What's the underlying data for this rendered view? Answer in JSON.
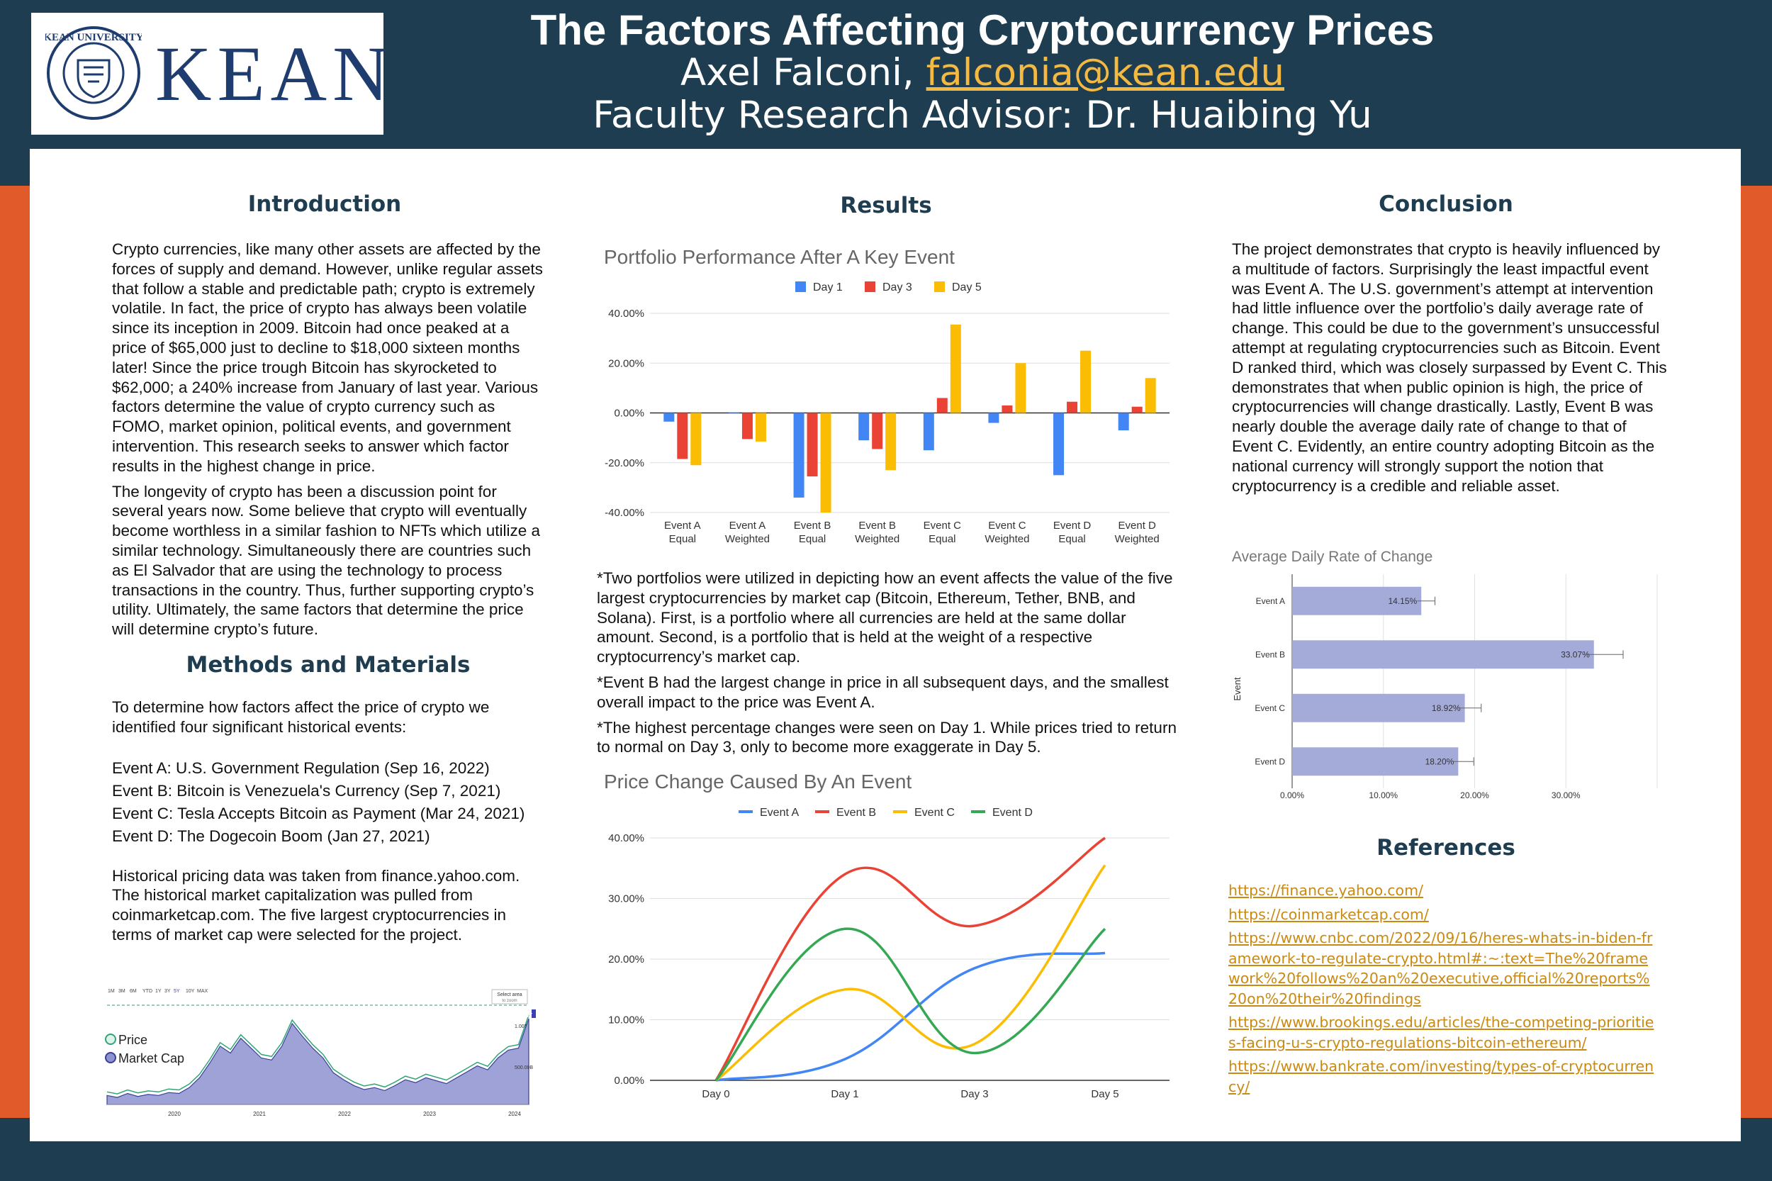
{
  "header": {
    "title": "The Factors Affecting Cryptocurrency Prices",
    "author": "Axel Falconi,",
    "email": "falconia@kean.edu",
    "advisor": "Faculty Research Advisor: Dr. Huaibing Yu",
    "logo_text": "KEAN",
    "seal_text": "KEAN UNIVERSITY"
  },
  "introduction": {
    "heading": "Introduction",
    "p1": "Crypto currencies, like many other assets are affected by the forces of supply and demand. However, unlike regular assets that follow a stable and predictable path; crypto is extremely volatile. In fact, the price of crypto has always been volatile since its inception in 2009. Bitcoin had once peaked at a price of $65,000 just to decline to $18,000 sixteen months later! Since the price trough Bitcoin has skyrocketed to $62,000; a 240% increase from January of last year. Various factors determine the value of crypto currency such as FOMO, market opinion, political events, and government intervention. This research seeks to answer which factor results in the highest change in price.",
    "p2": "The longevity of crypto has been a discussion point for several years now. Some believe that crypto will eventually become worthless in a similar fashion to NFTs which utilize a similar technology. Simultaneously there are countries such as El Salvador that are using the technology to process transactions in the country. Thus, further supporting crypto’s utility. Ultimately, the same factors that determine the price will determine crypto’s future."
  },
  "methods": {
    "heading": "Methods and Materials",
    "p1": "To determine how factors affect the price of crypto we identified four significant historical events:",
    "events": [
      "Event A: U.S. Government Regulation (Sep 16, 2022)",
      "Event B: Bitcoin is Venezuela's Currency (Sep 7, 2021)",
      "Event C: Tesla Accepts Bitcoin as Payment (Mar 24, 2021)",
      "Event D: The Dogecoin Boom (Jan 27, 2021)"
    ],
    "p2": "Historical pricing data was taken from finance.yahoo.com. The historical market capitalization was pulled from coinmarketcap.com. The five largest cryptocurrencies in terms of market cap were selected for the project."
  },
  "market_chart": {
    "ranges": [
      "1M",
      "3M",
      "6M",
      "YTD",
      "1Y",
      "3Y",
      "5Y",
      "10Y",
      "MAX"
    ],
    "select": "Select area",
    "select_sub": "to zoom",
    "legend": [
      "Price",
      "Market Cap"
    ],
    "years": [
      "2020",
      "2021",
      "2022",
      "2023",
      "2024"
    ],
    "right_labels": [
      "1.225T",
      "1.00T",
      "500.00B"
    ]
  },
  "results": {
    "heading": "Results",
    "n1": "*Two portfolios were utilized in depicting how an event affects the value of the five largest cryptocurrencies by market cap (Bitcoin, Ethereum, Tether, BNB, and Solana). First, is a portfolio where all currencies are held at the same dollar amount. Second, is a portfolio that is held at the weight of a respective cryptocurrency’s market cap.",
    "n2": "*Event B had the largest change in price in all subsequent days, and the smallest overall impact to the price was Event A.",
    "n3": "*The highest percentage changes were seen on Day 1. While prices tried to return to normal on Day 3, only to become more exaggerate in Day 5."
  },
  "conclusion": {
    "heading": "Conclusion",
    "text": "The project demonstrates that crypto is heavily influenced by a multitude of factors. Surprisingly the least impactful event was Event A. The U.S. government’s attempt at intervention had little influence over the portfolio’s daily average rate of change. This could be due to the government’s unsuccessful attempt at regulating cryptocurrencies such as Bitcoin. Event D ranked third, which was closely surpassed by Event C. This demonstrates that when public opinion is high, the price of cryptocurrencies will change drastically. Lastly, Event B was nearly double the average daily rate of change to that of Event C. Evidently, an entire country adopting Bitcoin as the national currency will strongly support the notion that cryptocurrency is a credible and reliable asset."
  },
  "references": {
    "heading": "References",
    "links": [
      "https://finance.yahoo.com/",
      "https://coinmarketcap.com/",
      "https://www.cnbc.com/2022/09/16/heres-whats-in-biden-framework-to-regulate-crypto.html#:~:text=The%20framework%20follows%20an%20executive,official%20reports%20on%20their%20findings",
      "https://www.brookings.edu/articles/the-competing-priorities-facing-u-s-crypto-regulations-bitcoin-ethereum/",
      "https://www.bankrate.com/investing/types-of-cryptocurrency/"
    ]
  },
  "colors": {
    "navy": "#1e3d50",
    "orange": "#e05a2a",
    "blue": "#4285f4",
    "red": "#ea4335",
    "yellow": "#fbbc04",
    "green": "#34a853",
    "lavender": "#a5abd9"
  },
  "chart_data": [
    {
      "type": "bar",
      "title": "Portfolio Performance After A Key Event",
      "categories": [
        "Event A Equal",
        "Event A Weighted",
        "Event B Equal",
        "Event B Weighted",
        "Event C Equal",
        "Event C Weighted",
        "Event D Equal",
        "Event D Weighted"
      ],
      "series": [
        {
          "name": "Day 1",
          "color": "#4285f4",
          "values": [
            -3.5,
            0,
            -34,
            -11,
            -15,
            -4,
            -25,
            -7
          ]
        },
        {
          "name": "Day 3",
          "color": "#ea4335",
          "values": [
            -18.5,
            -10.5,
            -25.5,
            -14.5,
            6,
            3,
            4.5,
            2.5
          ]
        },
        {
          "name": "Day 5",
          "color": "#fbbc04",
          "values": [
            -21,
            -11.5,
            -40,
            -23,
            35.5,
            20,
            25,
            14
          ]
        }
      ],
      "yticks": [
        "40.00%",
        "20.00%",
        "0.00%",
        "-20.00%",
        "-40.00%"
      ],
      "ylim": [
        -40,
        40
      ]
    },
    {
      "type": "line",
      "title": "Price Change Caused By An Event",
      "categories": [
        "Day 0",
        "Day 1",
        "Day 3",
        "Day 5"
      ],
      "series": [
        {
          "name": "Event A",
          "color": "#4285f4",
          "values": [
            0,
            3.5,
            18.5,
            21
          ]
        },
        {
          "name": "Event B",
          "color": "#ea4335",
          "values": [
            0,
            34,
            25.5,
            40
          ]
        },
        {
          "name": "Event C",
          "color": "#fbbc04",
          "values": [
            0,
            15,
            6,
            35.5
          ]
        },
        {
          "name": "Event D",
          "color": "#34a853",
          "values": [
            0,
            25,
            4.5,
            25
          ]
        }
      ],
      "yticks": [
        "40.00%",
        "30.00%",
        "20.00%",
        "10.00%",
        "0.00%"
      ],
      "ylim": [
        0,
        40
      ]
    },
    {
      "type": "bar",
      "orientation": "horizontal",
      "title": "Average Daily Rate of Change",
      "ylabel": "Event",
      "categories": [
        "Event A",
        "Event B",
        "Event C",
        "Event D"
      ],
      "values": [
        14.15,
        33.07,
        18.92,
        18.2
      ],
      "labels": [
        "14.15%",
        "33.07%",
        "18.92%",
        "18.20%"
      ],
      "error": [
        1.5,
        3.2,
        1.8,
        1.7
      ],
      "xticks": [
        "0.00%",
        "10.00%",
        "20.00%",
        "30.00%"
      ],
      "xlim": [
        0,
        40
      ]
    }
  ]
}
